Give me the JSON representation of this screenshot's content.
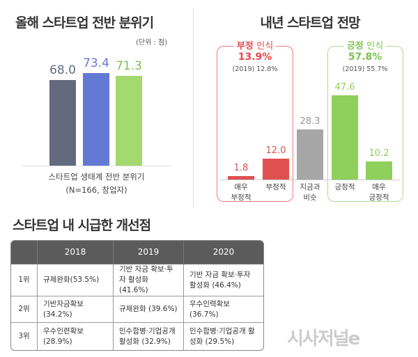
{
  "chart_data": [
    {
      "type": "bar",
      "title": "올해 스타트업 전반 분위기",
      "unit_note": "(단위 : 점)",
      "xlabel": "스타트업 생태계 전반 분위기",
      "xlabel_note": "(N=166, 창업자)",
      "values": [
        68.0,
        73.4,
        71.3
      ],
      "labels": [
        "68.0",
        "73.4",
        "71.3"
      ],
      "colors": [
        "#636a7e",
        "#6479d4",
        "#a3d96f"
      ],
      "ylim": [
        0,
        80
      ],
      "grid": false
    },
    {
      "type": "bar",
      "title": "내년 스타트업 전망",
      "categories": [
        "매우\n부정적",
        "부정적",
        "지금과\n비슷",
        "긍정적",
        "매우\n긍정적"
      ],
      "values": [
        1.8,
        12.0,
        28.3,
        47.6,
        10.2
      ],
      "labels": [
        "1.8",
        "12.0",
        "28.3",
        "47.6",
        "10.2"
      ],
      "colors": [
        "#e05050",
        "#e05050",
        "#a6a6a6",
        "#8fcf5c",
        "#8fcf5c"
      ],
      "ylim": [
        0,
        50
      ],
      "grid": false,
      "groups": [
        {
          "name_bold": "부정",
          "name_rest": "인식",
          "total": "13.9%",
          "prev": "(2019) 12.8%",
          "color": "#e8474c"
        },
        {
          "name_bold": "긍정",
          "name_rest": "인식",
          "total": "57.8%",
          "prev": "(2019) 55.7%",
          "color": "#7cc24a"
        }
      ]
    }
  ],
  "table": {
    "title": "스타트업 내 시급한 개선점",
    "headers": [
      "",
      "2018",
      "2019",
      "2020"
    ],
    "rows": [
      [
        "1위",
        "규제완화(53.5%)",
        "기반 자금 확보·투자 활성화 (41.6%)",
        "기반 자금 확보·투자 활성화 (46.4%)"
      ],
      [
        "2위",
        "기반자금확보(34.2%)",
        "규제완화 (39.6%)",
        "우수인력확보 (36.7%)"
      ],
      [
        "3위",
        "우수인련확보(28.9%)",
        "인수합병·기업공개 활성화 (32.9%)",
        "인수합병·기업공개 활성화 (29.5%)"
      ]
    ]
  },
  "logo": "시사저널e"
}
